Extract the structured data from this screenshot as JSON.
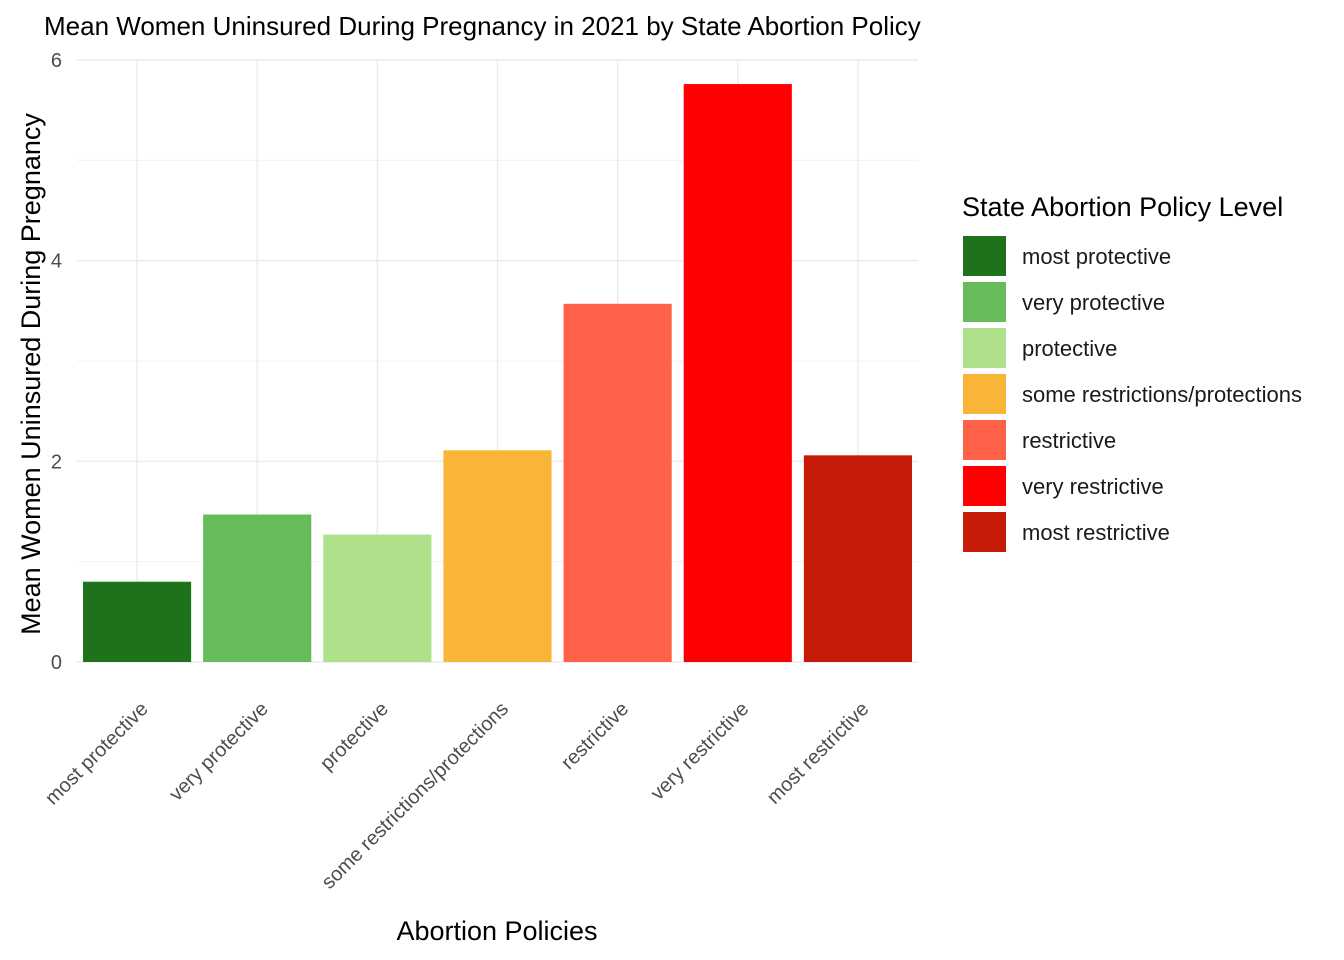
{
  "chart_data": {
    "type": "bar",
    "title": "Mean Women Uninsured During Pregnancy in 2021 by State Abortion Policy",
    "xlabel": "Abortion Policies",
    "ylabel": "Mean Women Uninsured During Pregnancy",
    "categories": [
      "most protective",
      "very protective",
      "protective",
      "some restrictions/protections",
      "restrictive",
      "very restrictive",
      "most restrictive"
    ],
    "values": [
      0.8,
      1.47,
      1.27,
      2.11,
      3.57,
      5.76,
      2.06
    ],
    "colors": [
      "#1e7219",
      "#66bb5a",
      "#afe08a",
      "#f9b537",
      "#ff6148",
      "#ff0000",
      "#c71b0a"
    ],
    "ylim": [
      0,
      6
    ],
    "yticks": [
      0,
      2,
      4,
      6
    ],
    "grid": true,
    "legend": {
      "title": "State Abortion Policy Level",
      "placement": "right",
      "entries": [
        "most protective",
        "very protective",
        "protective",
        "some restrictions/protections",
        "restrictive",
        "very restrictive",
        "most restrictive"
      ]
    }
  }
}
